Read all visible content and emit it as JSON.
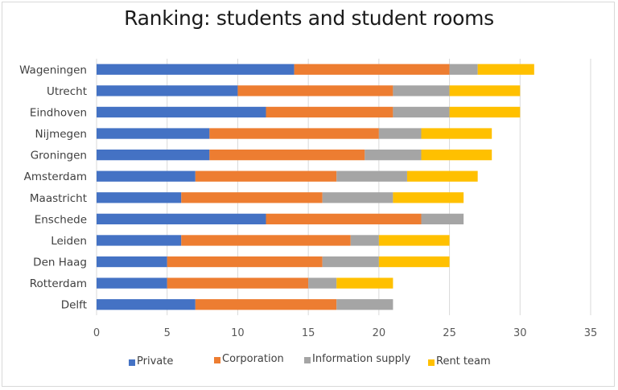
{
  "chart_data": {
    "type": "bar",
    "orientation": "horizontal",
    "stacked": true,
    "title": "Ranking: students and student rooms",
    "xlabel": "",
    "ylabel": "",
    "xlim": [
      0,
      35
    ],
    "xticks": [
      0,
      5,
      10,
      15,
      20,
      25,
      30,
      35
    ],
    "grid": "vertical",
    "legend_position": "bottom",
    "categories": [
      "Wageningen",
      "Utrecht",
      "Eindhoven",
      "Nijmegen",
      "Groningen",
      "Amsterdam",
      "Maastricht",
      "Enschede",
      "Leiden",
      "Den Haag",
      "Rotterdam",
      "Delft"
    ],
    "series": [
      {
        "name": "Private",
        "color": "#4472c4",
        "values": [
          14,
          10,
          12,
          8,
          8,
          7,
          6,
          12,
          6,
          5,
          5,
          7
        ]
      },
      {
        "name": "Corporation",
        "color": "#ed7d31",
        "values": [
          11,
          11,
          9,
          12,
          11,
          10,
          10,
          11,
          12,
          11,
          10,
          10
        ]
      },
      {
        "name": "Information supply",
        "color": "#a5a5a5",
        "values": [
          2,
          4,
          4,
          3,
          4,
          5,
          5,
          3,
          2,
          4,
          2,
          4
        ]
      },
      {
        "name": "Rent team",
        "color": "#ffc000",
        "values": [
          4,
          5,
          5,
          5,
          5,
          5,
          5,
          0,
          5,
          5,
          4,
          0
        ]
      }
    ]
  }
}
